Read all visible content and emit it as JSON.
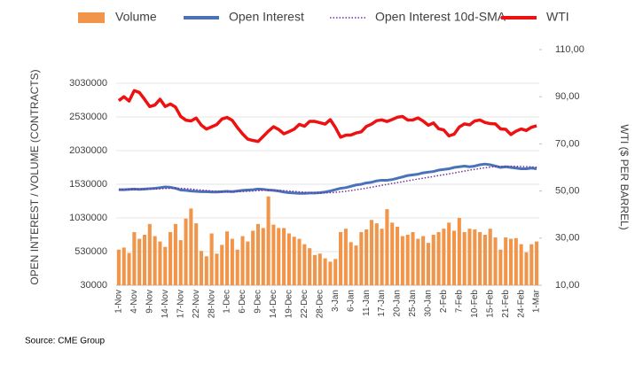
{
  "chart_data": {
    "type": "combo",
    "y_axis_label": "OPEN INTEREST / VOLUME (CONTRACTS)",
    "y2_axis_label": "WTI ($ PER BARREL)",
    "source": "Source: CME Group",
    "categories": [
      "1-Nov",
      null,
      null,
      "4-Nov",
      null,
      null,
      "9-Nov",
      null,
      null,
      "14-Nov",
      null,
      null,
      "17-Nov",
      null,
      null,
      "22-Nov",
      null,
      null,
      "28-Nov",
      null,
      null,
      "1-Dec",
      null,
      null,
      "6-Dec",
      null,
      null,
      "9-Dec",
      null,
      null,
      "14-Dec",
      null,
      null,
      "19-Dec",
      null,
      null,
      "22-Dec",
      null,
      null,
      "28-Dec",
      null,
      null,
      "3-Jan",
      null,
      null,
      "6-Jan",
      null,
      null,
      "11-Jan",
      null,
      null,
      "17-Jan",
      null,
      null,
      "20-Jan",
      null,
      null,
      "25-Jan",
      null,
      null,
      "30-Jan",
      null,
      null,
      "2-Feb",
      null,
      null,
      "7-Feb",
      null,
      null,
      "10-Feb",
      null,
      null,
      "15-Feb",
      null,
      null,
      "21-Feb",
      null,
      null,
      "24-Feb",
      null,
      null,
      "1-Mar"
    ],
    "ylim": [
      30000,
      3530000
    ],
    "yticks": [
      30000,
      530000,
      1030000,
      1530000,
      2030000,
      2530000,
      3030000
    ],
    "y2lim": [
      10,
      110
    ],
    "y2ticks": [
      {
        "value": 10,
        "label": "10,00"
      },
      {
        "value": 30,
        "label": "30,00"
      },
      {
        "value": 50,
        "label": "50,00"
      },
      {
        "value": 70,
        "label": "70,00"
      },
      {
        "value": 90,
        "label": "90,00"
      },
      {
        "value": 110,
        "label": "110,00"
      }
    ],
    "grid": true,
    "legend": "top",
    "series": [
      {
        "name": "Volume",
        "type": "bar",
        "color": "#f0954a",
        "values": [
          560000,
          590000,
          510000,
          820000,
          720000,
          780000,
          940000,
          760000,
          680000,
          600000,
          820000,
          940000,
          700000,
          1020000,
          1170000,
          950000,
          540000,
          460000,
          800000,
          500000,
          630000,
          830000,
          720000,
          560000,
          760000,
          680000,
          840000,
          940000,
          880000,
          1350000,
          930000,
          880000,
          880000,
          800000,
          750000,
          720000,
          640000,
          580000,
          480000,
          500000,
          430000,
          380000,
          420000,
          820000,
          870000,
          670000,
          620000,
          820000,
          860000,
          1000000,
          950000,
          870000,
          1160000,
          960000,
          900000,
          760000,
          780000,
          820000,
          720000,
          760000,
          660000,
          780000,
          820000,
          870000,
          960000,
          840000,
          1030000,
          820000,
          870000,
          860000,
          820000,
          780000,
          870000,
          740000,
          560000,
          740000,
          720000,
          730000,
          640000,
          520000,
          640000,
          680000
        ]
      },
      {
        "name": "Open Interest",
        "type": "line",
        "color": "#4a72b8",
        "line_style": "solid",
        "values": [
          1450000,
          1450000,
          1455000,
          1460000,
          1455000,
          1460000,
          1465000,
          1470000,
          1480000,
          1490000,
          1485000,
          1470000,
          1445000,
          1440000,
          1430000,
          1425000,
          1420000,
          1420000,
          1415000,
          1415000,
          1420000,
          1425000,
          1420000,
          1430000,
          1440000,
          1445000,
          1450000,
          1460000,
          1455000,
          1445000,
          1440000,
          1430000,
          1415000,
          1405000,
          1400000,
          1395000,
          1395000,
          1400000,
          1400000,
          1405000,
          1415000,
          1430000,
          1450000,
          1470000,
          1480000,
          1500000,
          1520000,
          1530000,
          1550000,
          1560000,
          1580000,
          1590000,
          1590000,
          1600000,
          1620000,
          1640000,
          1660000,
          1670000,
          1680000,
          1700000,
          1710000,
          1720000,
          1740000,
          1750000,
          1760000,
          1780000,
          1790000,
          1800000,
          1790000,
          1800000,
          1820000,
          1830000,
          1820000,
          1800000,
          1780000,
          1790000,
          1780000,
          1770000,
          1760000,
          1760000,
          1770000,
          1760000
        ]
      },
      {
        "name": "Open Interest 10d-SMA",
        "type": "line",
        "color": "#7030a0",
        "line_style": "dotted",
        "values": [
          1450000,
          1450000,
          1452000,
          1453000,
          1454000,
          1455000,
          1457000,
          1460000,
          1463000,
          1467000,
          1470000,
          1472000,
          1470000,
          1465000,
          1460000,
          1450000,
          1445000,
          1438000,
          1430000,
          1425000,
          1420000,
          1420000,
          1420000,
          1421000,
          1423000,
          1426000,
          1430000,
          1435000,
          1440000,
          1442000,
          1443000,
          1440000,
          1435000,
          1430000,
          1424000,
          1418000,
          1412000,
          1407000,
          1404000,
          1402000,
          1402000,
          1405000,
          1410000,
          1418000,
          1426000,
          1436000,
          1448000,
          1460000,
          1473000,
          1486000,
          1500000,
          1515000,
          1528000,
          1542000,
          1555000,
          1568000,
          1582000,
          1595000,
          1608000,
          1620000,
          1633000,
          1646000,
          1660000,
          1672000,
          1685000,
          1698000,
          1712000,
          1726000,
          1740000,
          1752000,
          1764000,
          1775000,
          1785000,
          1792000,
          1796000,
          1798000,
          1798000,
          1797000,
          1795000,
          1792000,
          1788000,
          1784000
        ]
      },
      {
        "name": "WTI",
        "type": "line",
        "color": "#ee1111",
        "line_style": "solid",
        "axis": "y2",
        "values": [
          88.37,
          90.0,
          88.17,
          92.61,
          91.79,
          88.91,
          85.83,
          86.47,
          88.96,
          85.87,
          86.92,
          85.59,
          81.64,
          80.08,
          79.73,
          80.95,
          77.94,
          76.28,
          77.24,
          78.2,
          80.55,
          81.22,
          79.98,
          76.93,
          74.25,
          72.01,
          71.46,
          71.02,
          73.17,
          75.39,
          77.28,
          76.11,
          74.29,
          75.19,
          76.23,
          78.29,
          77.49,
          79.56,
          79.53,
          78.96,
          78.4,
          80.26,
          76.93,
          72.84,
          73.67,
          73.77,
          74.63,
          75.12,
          77.41,
          78.39,
          79.86,
          80.18,
          79.48,
          80.33,
          81.31,
          81.62,
          80.13,
          80.15,
          81.01,
          79.68,
          77.9,
          78.87,
          76.41,
          75.88,
          73.39,
          74.11,
          77.14,
          78.47,
          78.06,
          79.72,
          80.14,
          79.06,
          78.59,
          78.49,
          76.34,
          76.16,
          73.95,
          75.39,
          76.32,
          75.68,
          77.05,
          77.69
        ]
      }
    ]
  }
}
